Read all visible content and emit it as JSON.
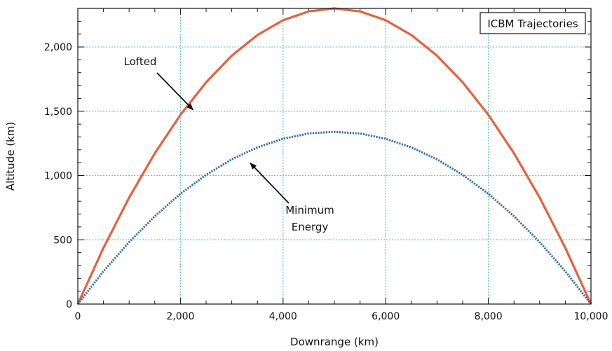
{
  "chart_data": {
    "type": "line",
    "title": "ICBM Trajectories",
    "xlabel": "Downrange (km)",
    "ylabel": "Altitude (km)",
    "xlim": [
      0,
      10000
    ],
    "ylim": [
      0,
      2300
    ],
    "xticks": [
      0,
      2000,
      4000,
      6000,
      8000,
      10000
    ],
    "xtick_labels": [
      "0",
      "2,000",
      "4,000",
      "6,000",
      "8,000",
      "10,000"
    ],
    "yticks": [
      0,
      500,
      1000,
      1500,
      2000
    ],
    "ytick_labels": [
      "0",
      "500",
      "1,000",
      "1,500",
      "2,000"
    ],
    "grid": true,
    "series": [
      {
        "name": "Lofted",
        "color": "#e8603c",
        "style": "solid",
        "x": [
          0,
          500,
          1000,
          1500,
          2000,
          2500,
          3000,
          3500,
          4000,
          4500,
          5000,
          5500,
          6000,
          6500,
          7000,
          7500,
          8000,
          8500,
          9000,
          9500,
          10000
        ],
        "y": [
          0,
          437,
          828,
          1173,
          1472,
          1725,
          1932,
          2093,
          2208,
          2277,
          2300,
          2277,
          2208,
          2093,
          1932,
          1725,
          1472,
          1173,
          828,
          437,
          0
        ]
      },
      {
        "name": "Minimum Energy",
        "color": "#2f6fad",
        "style": "dotted",
        "x": [
          0,
          500,
          1000,
          1500,
          2000,
          2500,
          3000,
          3500,
          4000,
          4500,
          5000,
          5500,
          6000,
          6500,
          7000,
          7500,
          8000,
          8500,
          9000,
          9500,
          10000
        ],
        "y": [
          0,
          255,
          482,
          683,
          858,
          1005,
          1126,
          1219,
          1286,
          1327,
          1340,
          1327,
          1286,
          1219,
          1126,
          1005,
          858,
          683,
          482,
          255,
          0
        ]
      }
    ],
    "annotations": [
      {
        "text": "Lofted",
        "arrow_to": [
          2300,
          1500
        ]
      },
      {
        "text_lines": [
          "Minimum",
          "Energy"
        ],
        "arrow_to": [
          3250,
          1130
        ]
      }
    ],
    "legend": {
      "text": "ICBM Trajectories",
      "placement": "top-right"
    }
  }
}
